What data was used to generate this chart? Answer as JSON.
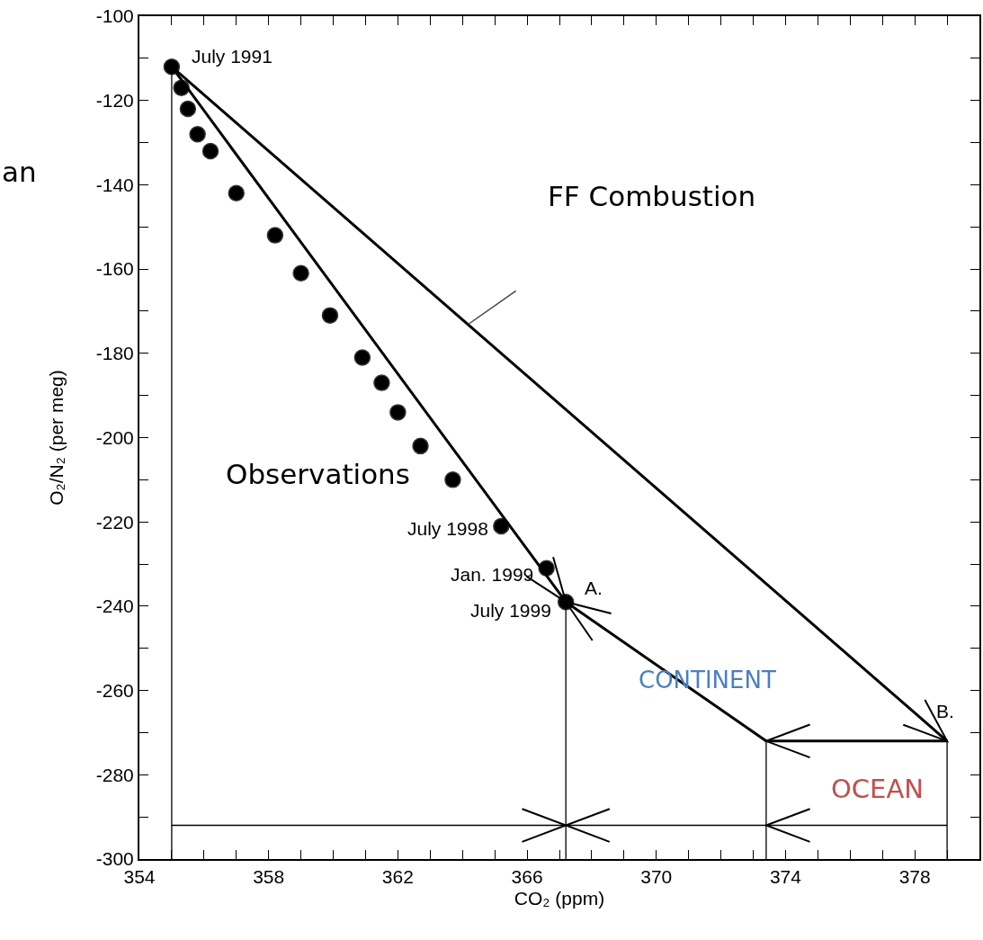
{
  "chart_data": {
    "type": "scatter",
    "xlabel": "CO₂ (ppm)",
    "ylabel": "O₂/N₂ (per meg)",
    "xlim": [
      354,
      380
    ],
    "xticks": [
      354,
      {
        "value": 355,
        "label": null
      },
      {
        "value": 356,
        "label": null
      },
      {
        "value": 357,
        "label": null
      },
      358,
      {
        "value": 359,
        "label": null
      },
      {
        "value": 360,
        "label": null
      },
      {
        "value": 361,
        "label": null
      },
      362,
      {
        "value": 363,
        "label": null
      },
      {
        "value": 364,
        "label": null
      },
      {
        "value": 365,
        "label": null
      },
      366,
      {
        "value": 367,
        "label": null
      },
      {
        "value": 368,
        "label": null
      },
      {
        "value": 369,
        "label": null
      },
      370,
      {
        "value": 371,
        "label": null
      },
      {
        "value": 372,
        "label": null
      },
      {
        "value": 373,
        "label": null
      },
      374,
      {
        "value": 375,
        "label": null
      },
      {
        "value": 376,
        "label": null
      },
      {
        "value": 377,
        "label": null
      },
      378,
      {
        "value": 379,
        "label": null
      }
    ],
    "ylim": [
      -300,
      -100
    ],
    "yticks": [
      -300,
      {
        "value": -290,
        "label": null
      },
      -280,
      {
        "value": -270,
        "label": null
      },
      -260,
      {
        "value": -250,
        "label": null
      },
      -240,
      {
        "value": -230,
        "label": null
      },
      -220,
      {
        "value": -210,
        "label": null
      },
      -200,
      {
        "value": -190,
        "label": null
      },
      -180,
      {
        "value": -170,
        "label": null
      },
      -160,
      {
        "value": -150,
        "label": null
      },
      -140,
      {
        "value": -130,
        "label": null
      },
      -120,
      {
        "value": -110,
        "label": null
      },
      -100
    ],
    "grid": false,
    "series": [
      {
        "marker": "circle",
        "color": "#000000",
        "x": [
          355.0,
          355.3,
          355.5,
          355.8,
          356.2,
          357.0,
          358.2,
          359.0,
          359.9,
          360.9,
          361.5,
          362.0,
          362.7,
          363.7,
          365.2,
          366.6,
          367.2
        ],
        "values": [
          -112,
          -117,
          -122,
          -128,
          -132,
          -142,
          -152,
          -161,
          -171,
          -181,
          -187,
          -194,
          -202,
          -210,
          -221,
          -231,
          -239
        ]
      },
      {
        "type": "line",
        "color": "#000000",
        "x": [
          355.0,
          367.2
        ],
        "values": [
          -112,
          -239
        ]
      },
      {
        "type": "line",
        "color": "#000000",
        "x": [
          355.0,
          379.0
        ],
        "values": [
          -112,
          -272
        ]
      },
      {
        "type": "line",
        "color": "#000000",
        "x": [
          379.0,
          373.4
        ],
        "values": [
          -272,
          -272
        ]
      },
      {
        "type": "line",
        "color": "#000000",
        "x": [
          373.4,
          367.2
        ],
        "values": [
          -272,
          -239
        ]
      },
      {
        "type": "line",
        "color": "#000000",
        "x": [
          355.0,
          355.0
        ],
        "values": [
          -112,
          -300
        ]
      },
      {
        "type": "line",
        "color": "#000000",
        "x": [
          367.2,
          367.2
        ],
        "values": [
          -239,
          -300
        ]
      },
      {
        "type": "line",
        "color": "#000000",
        "x": [
          373.4,
          373.4
        ],
        "values": [
          -272,
          -300
        ]
      },
      {
        "type": "line",
        "color": "#000000",
        "x": [
          379.0,
          379.0
        ],
        "values": [
          -272,
          -300
        ]
      },
      {
        "type": "line",
        "color": "#000000",
        "x": [
          355.0,
          367.2,
          379.0,
          373.4,
          367.2
        ],
        "values": [
          -292,
          -292,
          -292,
          -292,
          -292
        ]
      }
    ],
    "annotations": [
      {
        "text": "FF Combustion",
        "x": 364.2,
        "y": -173
      },
      "Observations",
      "July 1991",
      "July 1998",
      "Jan. 1999",
      "July 1999",
      "A.",
      "B.",
      "CONTINENT",
      "OCEAN",
      "an"
    ]
  }
}
